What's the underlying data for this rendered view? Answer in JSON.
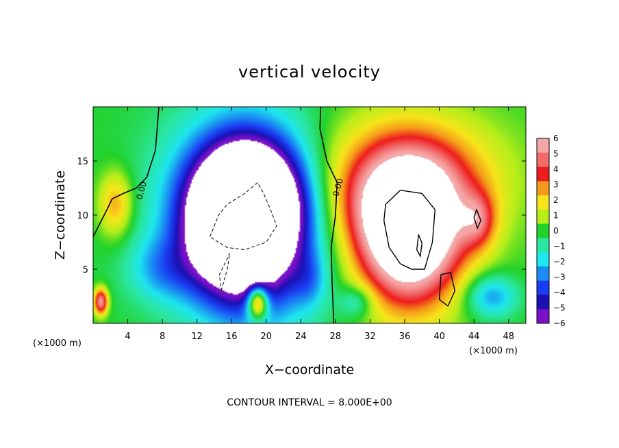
{
  "chart_data": {
    "type": "heatmap",
    "title": "vertical velocity",
    "xlabel": "X−coordinate",
    "ylabel": "Z−coordinate",
    "x_unit": "(×1000 m)",
    "y_unit": "(×1000 m)",
    "xlim": [
      0,
      50
    ],
    "ylim": [
      0,
      20
    ],
    "x_ticks": [
      4,
      8,
      12,
      16,
      20,
      24,
      28,
      32,
      36,
      40,
      44,
      48
    ],
    "x_tick_labels": [
      "4",
      "8",
      "12",
      "16",
      "20",
      "24",
      "28",
      "32",
      "36",
      "40",
      "44",
      "48"
    ],
    "y_ticks": [
      5,
      10,
      15
    ],
    "y_tick_labels": [
      "5",
      "10",
      "15"
    ],
    "colorbar": {
      "levels": [
        6,
        5,
        4,
        3,
        2,
        1,
        0,
        -1,
        -2,
        -3,
        -4,
        -5,
        -6
      ],
      "labels": [
        "6",
        "5",
        "4",
        "3",
        "2",
        "1",
        "0",
        "−1",
        "−2",
        "−3",
        "−4",
        "−5",
        "−6"
      ],
      "colors": [
        "#f4a6a6",
        "#f26a6a",
        "#ee1c1c",
        "#f59a1a",
        "#f7e41a",
        "#b8ee1a",
        "#22d22a",
        "#2ae6a0",
        "#1ee6ee",
        "#1a8cf2",
        "#1a3cf2",
        "#1a10b4",
        "#7a10c8"
      ]
    },
    "contour_labels": [
      {
        "text": "0.00",
        "x": 5.9,
        "z": 12.2
      },
      {
        "text": "0.00",
        "x": 28.6,
        "z": 12.5
      }
    ],
    "footer": "CONTOUR INTERVAL = 8.000E+00",
    "features": [
      {
        "x": 16.6,
        "z": 9.0,
        "rx": 5.2,
        "rz": 5.5,
        "v": -9
      },
      {
        "x": 18.0,
        "z": 11.5,
        "rx": 5.0,
        "rz": 4.5,
        "v": -8
      },
      {
        "x": 18.5,
        "z": 9.0,
        "rx": 7.0,
        "rz": 8.0,
        "v": -5
      },
      {
        "x": 17.0,
        "z": 10.5,
        "rx": 10.0,
        "rz": 9.5,
        "v": -3
      },
      {
        "x": 8.0,
        "z": 5.0,
        "rx": 4.0,
        "rz": 3.0,
        "v": -2
      },
      {
        "x": 36.5,
        "z": 8.0,
        "rx": 5.8,
        "rz": 6.5,
        "v": 9
      },
      {
        "x": 36.0,
        "z": 11.5,
        "rx": 8.5,
        "rz": 5.5,
        "v": 4
      },
      {
        "x": 36.0,
        "z": 14.0,
        "rx": 12.0,
        "rz": 6.0,
        "v": 2
      },
      {
        "x": 2.6,
        "z": 11.0,
        "rx": 2.0,
        "rz": 3.0,
        "v": 3
      },
      {
        "x": 19.0,
        "z": 2.0,
        "rx": 1.2,
        "rz": 1.6,
        "v": 7
      },
      {
        "x": 0.9,
        "z": 2.0,
        "rx": 0.8,
        "rz": 1.2,
        "v": 6
      },
      {
        "x": 44.5,
        "z": 9.5,
        "rx": 2.0,
        "rz": 2.5,
        "v": 3
      },
      {
        "x": 46.0,
        "z": 2.5,
        "rx": 3.0,
        "rz": 2.0,
        "v": -3
      },
      {
        "x": 30.5,
        "z": 2.0,
        "rx": 2.0,
        "rz": 1.5,
        "v": -2
      },
      {
        "x": 25.0,
        "z": 4.0,
        "rx": 2.0,
        "rz": 2.5,
        "v": -1.5
      }
    ],
    "zero_contours": [
      [
        [
          0.0,
          8.0
        ],
        [
          1.6,
          10.5
        ],
        [
          2.2,
          11.5
        ],
        [
          3.5,
          12.0
        ],
        [
          5.0,
          12.5
        ],
        [
          6.2,
          13.5
        ],
        [
          7.2,
          16.0
        ],
        [
          7.5,
          19.0
        ],
        [
          7.6,
          20.0
        ]
      ],
      [
        [
          26.3,
          20.0
        ],
        [
          26.2,
          18.0
        ],
        [
          27.0,
          15.0
        ],
        [
          28.2,
          13.0
        ],
        [
          28.0,
          10.0
        ],
        [
          27.5,
          7.0
        ],
        [
          27.6,
          4.0
        ],
        [
          27.8,
          0.0
        ]
      ]
    ],
    "closed_contours": [
      [
        [
          33.8,
          11.0
        ],
        [
          35.5,
          12.3
        ],
        [
          38.0,
          12.0
        ],
        [
          39.5,
          10.5
        ],
        [
          39.2,
          7.5
        ],
        [
          38.3,
          5.0
        ],
        [
          36.8,
          5.0
        ],
        [
          35.5,
          5.5
        ],
        [
          34.2,
          7.0
        ],
        [
          33.6,
          9.5
        ]
      ],
      [
        [
          37.6,
          8.2
        ],
        [
          38.0,
          7.4
        ],
        [
          37.8,
          6.2
        ],
        [
          37.4,
          6.8
        ]
      ],
      [
        [
          40.2,
          4.5
        ],
        [
          41.3,
          4.7
        ],
        [
          41.8,
          3.0
        ],
        [
          41.0,
          1.6
        ],
        [
          40.0,
          2.2
        ]
      ],
      [
        [
          44.3,
          10.5
        ],
        [
          44.8,
          9.5
        ],
        [
          44.4,
          8.8
        ],
        [
          44.0,
          9.8
        ]
      ]
    ],
    "dashed_contours": [
      [
        [
          13.5,
          8.0
        ],
        [
          14.5,
          10.0
        ],
        [
          15.5,
          11.0
        ],
        [
          17.5,
          12.0
        ],
        [
          19.0,
          13.0
        ],
        [
          19.7,
          12.0
        ],
        [
          20.5,
          10.5
        ],
        [
          21.2,
          9.0
        ],
        [
          20.0,
          7.5
        ],
        [
          17.5,
          6.8
        ],
        [
          15.5,
          7.0
        ]
      ],
      [
        [
          14.8,
          3.0
        ],
        [
          15.5,
          5.0
        ],
        [
          15.8,
          6.5
        ],
        [
          15.2,
          5.5
        ],
        [
          14.6,
          4.5
        ]
      ]
    ]
  }
}
